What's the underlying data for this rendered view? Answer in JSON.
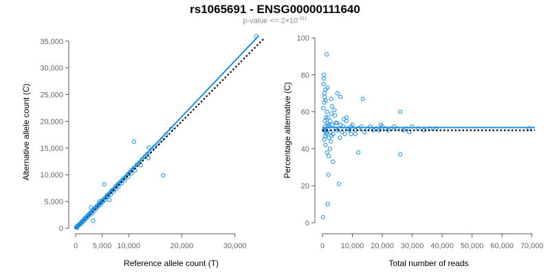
{
  "header": {
    "title": "rs1065691 - ENSG00000111640",
    "subtitle_prefix": "p-value <= 2×10",
    "subtitle_exponent": "-311"
  },
  "colors": {
    "points": "#1c8ee0",
    "fit_line": "#1c8ee0",
    "reference_line": "#000000",
    "axis": "#555555",
    "tick_text": "#666666"
  },
  "chart_data": [
    {
      "type": "scatter",
      "xlabel": "Reference allele count (T)",
      "ylabel": "Alternative allele count (C)",
      "xlim": [
        0,
        36000
      ],
      "ylim": [
        0,
        36000
      ],
      "x_ticks": [
        0,
        5000,
        10000,
        20000,
        30000
      ],
      "x_tick_labels": [
        "0",
        "5,000",
        "10,000",
        "20,000",
        "30,000"
      ],
      "y_ticks": [
        0,
        5000,
        10000,
        15000,
        20000,
        25000,
        30000,
        35000
      ],
      "y_tick_labels": [
        "0",
        "5,000",
        "10,000",
        "15,000",
        "20,000",
        "25,000",
        "30,000",
        "35,000"
      ],
      "grid": false,
      "fit_line": {
        "x": [
          0,
          34500
        ],
        "y": [
          0,
          36000
        ]
      },
      "reference_line": {
        "x": [
          0,
          35600
        ],
        "y": [
          0,
          35600
        ]
      },
      "points": {
        "x": [
          100,
          200,
          300,
          400,
          500,
          600,
          800,
          1000,
          1200,
          1400,
          1600,
          1800,
          2000,
          2200,
          2400,
          2600,
          2800,
          3000,
          3200,
          3400,
          3600,
          3800,
          4000,
          4200,
          4400,
          4600,
          4800,
          5000,
          5200,
          5500,
          5800,
          6000,
          6200,
          6500,
          6800,
          7000,
          7200,
          7500,
          7800,
          8000,
          8300,
          8600,
          9000,
          9400,
          9800,
          10200,
          10600,
          11000,
          11500,
          12000,
          12500,
          13000,
          13500,
          14000,
          14800,
          15500,
          16200,
          17000,
          18000,
          34000,
          300,
          700,
          1100,
          1500,
          1900,
          2300,
          2700,
          3100,
          3500,
          3900,
          4300,
          4700,
          5100,
          5600,
          6100,
          6600,
          7100,
          7600,
          8100,
          8700,
          9300,
          9900,
          10500,
          11200,
          12300,
          13700,
          2900,
          3300,
          5400,
          16500,
          11000,
          13800,
          6400,
          4500
        ],
        "y": [
          150,
          250,
          350,
          500,
          550,
          650,
          850,
          1050,
          1300,
          1400,
          1700,
          1900,
          2100,
          2300,
          2500,
          2700,
          2900,
          3100,
          3300,
          3600,
          3700,
          3900,
          4200,
          4300,
          4600,
          4700,
          4900,
          5200,
          5300,
          5700,
          5900,
          6200,
          6300,
          6700,
          7000,
          7200,
          7300,
          7800,
          8000,
          8300,
          8500,
          8900,
          9300,
          9600,
          10100,
          10500,
          10900,
          11300,
          11900,
          12300,
          12900,
          13400,
          13900,
          14300,
          15200,
          15800,
          16600,
          17500,
          18600,
          35900,
          100,
          600,
          900,
          1300,
          1800,
          2100,
          2500,
          2800,
          3200,
          3700,
          4100,
          4400,
          4900,
          5300,
          5900,
          6300,
          6800,
          7300,
          7800,
          8400,
          9000,
          9600,
          10200,
          10800,
          11800,
          13100,
          3900,
          1400,
          8200,
          9900,
          16200,
          15100,
          5300,
          5000
        ]
      }
    },
    {
      "type": "scatter",
      "xlabel": "Total number of reads",
      "ylabel": "Percentage alternative (C)",
      "xlim": [
        0,
        71000
      ],
      "ylim": [
        0,
        100
      ],
      "x_ticks": [
        0,
        10000,
        20000,
        30000,
        40000,
        50000,
        60000,
        70000
      ],
      "x_tick_labels": [
        "0",
        "10,000",
        "20,000",
        "30,000",
        "40,000",
        "50,000",
        "60,000",
        "70,000"
      ],
      "y_ticks": [
        0,
        20,
        40,
        60,
        80,
        100
      ],
      "y_tick_labels": [
        "0",
        "20",
        "40",
        "60",
        "80",
        "100"
      ],
      "grid": false,
      "fit_line": {
        "x": [
          0,
          71000
        ],
        "y": [
          51.5,
          51.5
        ]
      },
      "reference_line": {
        "x": [
          0,
          71000
        ],
        "y": [
          50,
          50
        ]
      },
      "points": {
        "x": [
          200,
          300,
          400,
          500,
          600,
          700,
          800,
          900,
          1000,
          1100,
          1200,
          1300,
          1400,
          1500,
          1600,
          1800,
          2000,
          2200,
          2400,
          2600,
          2800,
          3000,
          3300,
          3600,
          4000,
          4500,
          5000,
          5500,
          6000,
          6500,
          7000,
          7500,
          8000,
          8500,
          9000,
          9500,
          10000,
          11000,
          12000,
          13000,
          14000,
          15000,
          16000,
          17000,
          18000,
          19000,
          20000,
          21000,
          22000,
          23000,
          24000,
          25000,
          26000,
          27000,
          28000,
          29000,
          30000,
          32000,
          34000,
          36000,
          38000,
          69000,
          1000,
          1500,
          2500,
          3500,
          5000,
          6000,
          8000,
          12000,
          400,
          600,
          900,
          1200,
          1800,
          2600,
          3200,
          4200,
          700,
          1700,
          2100,
          2900,
          4800,
          5800,
          11000,
          26000,
          500,
          800,
          1400,
          2000,
          3000,
          4400,
          7200,
          9500,
          13500,
          19500
        ],
        "y": [
          3,
          62,
          78,
          80,
          45,
          68,
          55,
          50,
          42,
          66,
          50,
          48,
          91,
          60,
          54,
          57,
          26,
          46,
          52,
          49,
          44,
          59,
          53,
          48,
          61,
          51,
          50,
          21,
          53,
          49,
          52,
          48,
          55,
          51,
          50,
          52,
          53,
          50,
          51,
          52,
          49,
          51,
          52,
          50,
          51,
          50,
          52,
          51,
          50,
          51,
          52,
          51,
          60,
          50,
          51,
          49,
          52,
          51,
          50,
          51,
          51,
          51,
          72,
          38,
          40,
          33,
          70,
          68,
          57,
          38,
          75,
          65,
          47,
          57,
          10,
          55,
          63,
          58,
          70,
          73,
          36,
          67,
          54,
          46,
          48,
          37,
          50,
          52,
          49,
          53,
          47,
          54,
          56,
          48,
          67,
          53
        ]
      }
    }
  ]
}
